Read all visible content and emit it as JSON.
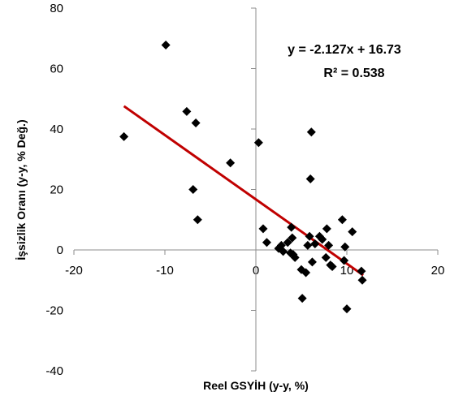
{
  "chart_data": {
    "type": "scatter",
    "xlabel": "Reel GSYİH (y-y, %)",
    "ylabel": "İşsizlik Oranı (y-y, % Değ.)",
    "xlim": [
      -20,
      20
    ],
    "ylim": [
      -40,
      80
    ],
    "x_ticks": [
      -20,
      -10,
      0,
      10,
      20
    ],
    "y_ticks": [
      -40,
      -20,
      0,
      20,
      40,
      60,
      80
    ],
    "x_tick_labels": [
      "-20",
      "-10",
      "0",
      "10",
      "20"
    ],
    "y_tick_labels": [
      "-40",
      "-20",
      "0",
      "20",
      "40",
      "60",
      "80"
    ],
    "grid": false,
    "legend": "none",
    "marker": "diamond",
    "marker_color": "#000000",
    "trendline": {
      "slope": -2.127,
      "intercept": 16.73,
      "x_range": [
        -14.5,
        11.8
      ],
      "color": "#c00000"
    },
    "annotations": [
      "y = -2.127x + 16.73",
      "R² = 0.538"
    ],
    "points": [
      [
        -14.5,
        37.5
      ],
      [
        -9.9,
        67.8
      ],
      [
        -7.6,
        45.8
      ],
      [
        -6.6,
        42.0
      ],
      [
        -6.9,
        20.0
      ],
      [
        -6.4,
        10.0
      ],
      [
        -2.8,
        28.8
      ],
      [
        0.3,
        35.5
      ],
      [
        0.8,
        7.0
      ],
      [
        1.2,
        2.5
      ],
      [
        2.5,
        0.5
      ],
      [
        2.8,
        1.5
      ],
      [
        3.0,
        -0.5
      ],
      [
        3.5,
        2.5
      ],
      [
        3.8,
        -1.0
      ],
      [
        3.9,
        7.5
      ],
      [
        4.0,
        4.0
      ],
      [
        4.1,
        -1.5
      ],
      [
        4.3,
        -2.5
      ],
      [
        5.0,
        -6.5
      ],
      [
        5.5,
        -7.5
      ],
      [
        5.7,
        1.5
      ],
      [
        5.9,
        4.5
      ],
      [
        6.0,
        23.5
      ],
      [
        6.1,
        39.0
      ],
      [
        6.2,
        -4.0
      ],
      [
        6.5,
        2.0
      ],
      [
        7.0,
        4.5
      ],
      [
        7.3,
        3.5
      ],
      [
        7.7,
        -2.5
      ],
      [
        7.8,
        7.0
      ],
      [
        8.0,
        1.5
      ],
      [
        8.2,
        -5.0
      ],
      [
        8.4,
        -5.5
      ],
      [
        9.5,
        10.0
      ],
      [
        9.7,
        -3.5
      ],
      [
        9.8,
        1.0
      ],
      [
        10.0,
        -19.5
      ],
      [
        10.6,
        6.0
      ],
      [
        11.6,
        -7.0
      ],
      [
        11.7,
        -10.0
      ],
      [
        5.1,
        -16.0
      ]
    ]
  }
}
